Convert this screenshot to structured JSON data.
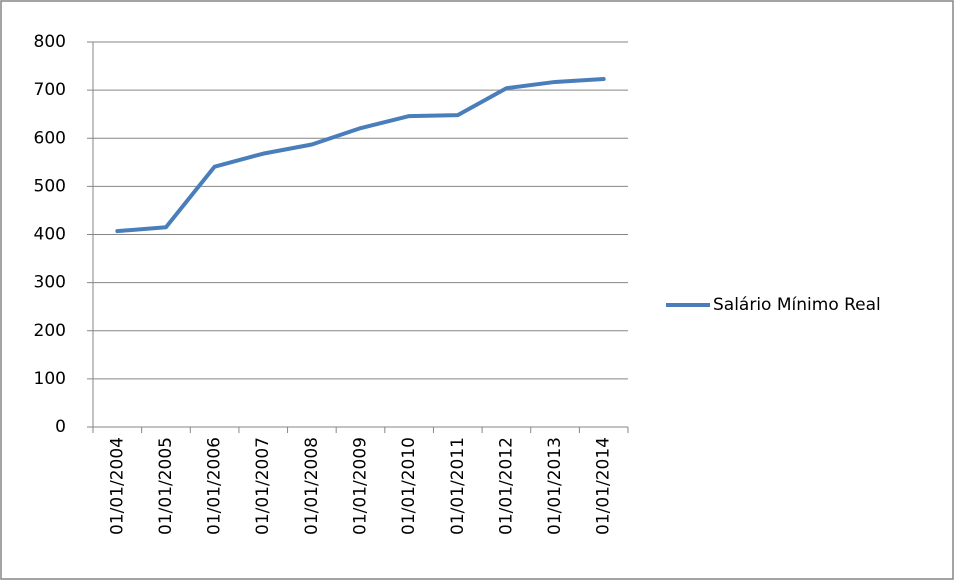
{
  "chart_data": {
    "type": "line",
    "categories": [
      "01/01/2004",
      "01/01/2005",
      "01/01/2006",
      "01/01/2007",
      "01/01/2008",
      "01/01/2009",
      "01/01/2010",
      "01/01/2011",
      "01/01/2012",
      "01/01/2013",
      "01/01/2014"
    ],
    "series": [
      {
        "name": "Salário Mínimo Real",
        "color": "#4a7ebb",
        "values": [
          407,
          415,
          541,
          568,
          587,
          621,
          646,
          648,
          704,
          717,
          723
        ]
      }
    ],
    "ylim": [
      0,
      800
    ],
    "yticks": [
      0,
      100,
      200,
      300,
      400,
      500,
      600,
      700,
      800
    ],
    "grid": true,
    "legend": "right"
  }
}
